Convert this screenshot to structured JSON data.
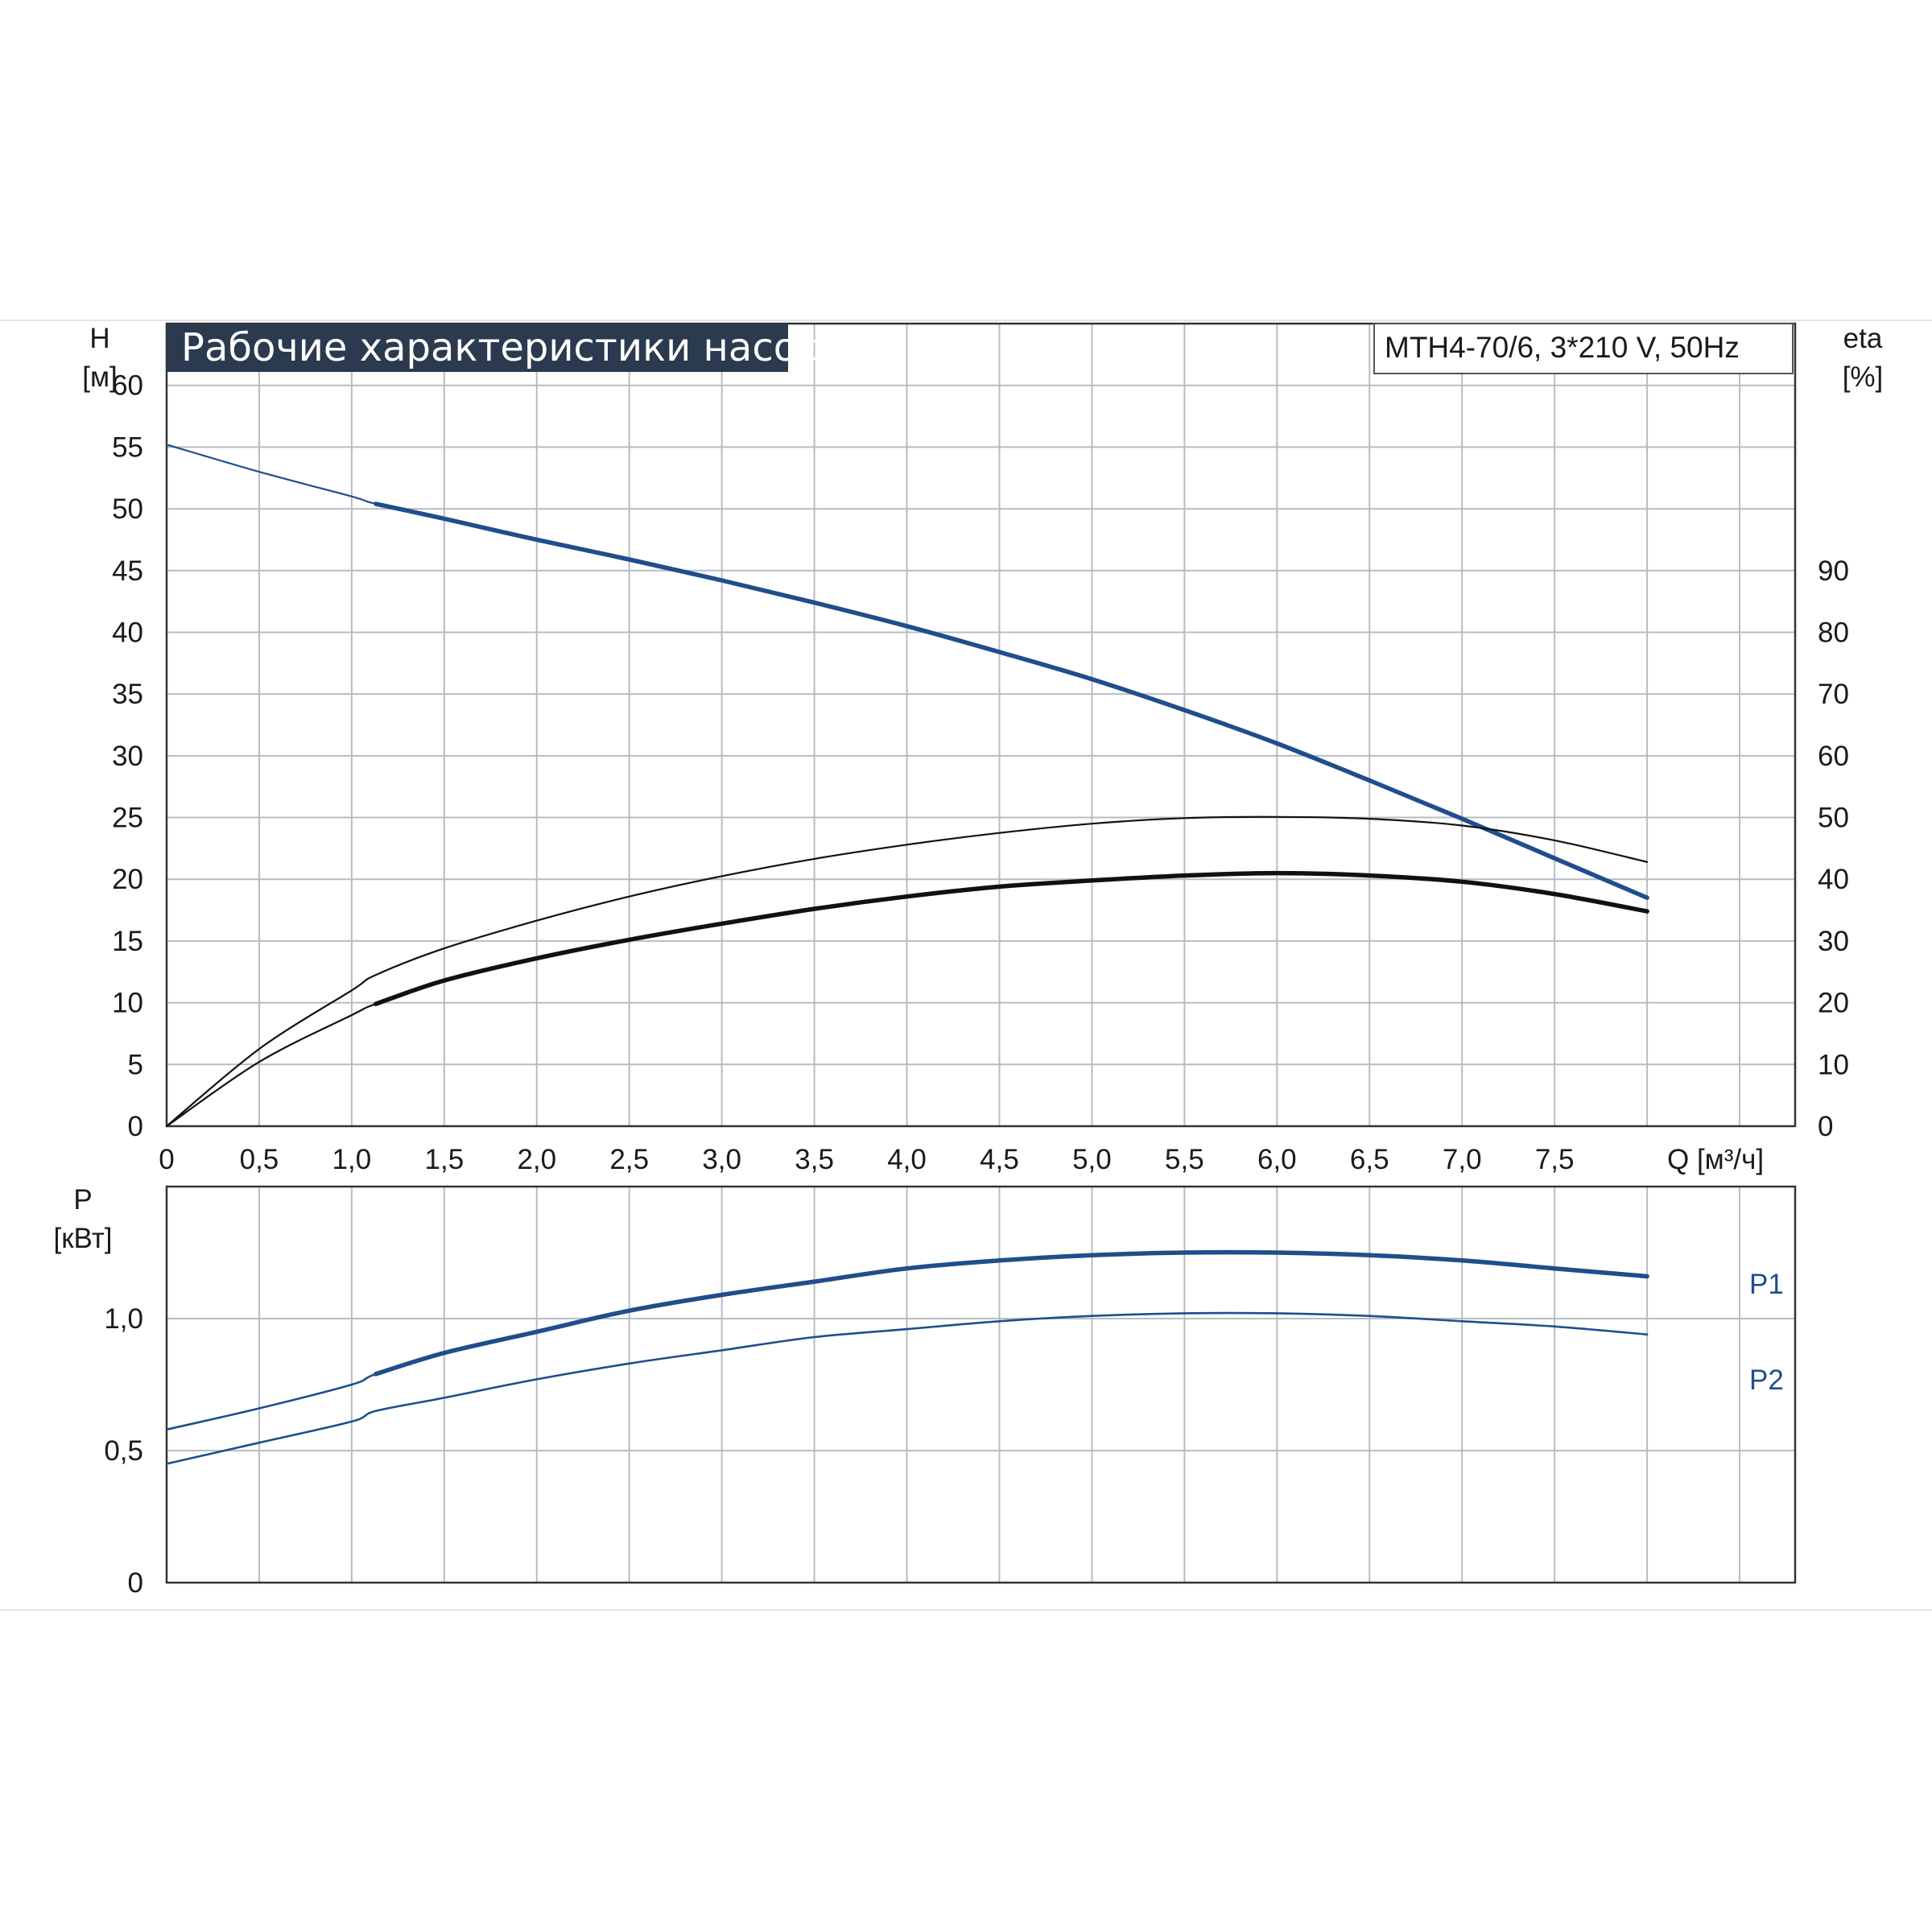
{
  "chart_data": [
    {
      "type": "line",
      "title": "Рабочие характеристики насоса",
      "subtitle": "MTH4-70/6, 3*210 V, 50Hz",
      "ylabel": [
        "H",
        "[м]"
      ],
      "y2label": [
        "eta",
        "[%]"
      ],
      "xlabel": "Q [м³/ч]",
      "xlim": [
        0,
        8.8
      ],
      "ylim": [
        0,
        65
      ],
      "y2lim": [
        0,
        130
      ],
      "x_ticks": [
        "0",
        "0,5",
        "1,0",
        "1,5",
        "2,0",
        "2,5",
        "3,0",
        "3,5",
        "4,0",
        "4,5",
        "5,0",
        "5,5",
        "6,0",
        "6,5",
        "7,0",
        "7,5"
      ],
      "x_tick_values": [
        0,
        0.5,
        1.0,
        1.5,
        2.0,
        2.5,
        3.0,
        3.5,
        4.0,
        4.5,
        5.0,
        5.5,
        6.0,
        6.5,
        7.0,
        7.5
      ],
      "y_ticks": [
        "0",
        "5",
        "10",
        "15",
        "20",
        "25",
        "30",
        "35",
        "40",
        "45",
        "50",
        "55",
        "60"
      ],
      "y_tick_values": [
        0,
        5,
        10,
        15,
        20,
        25,
        30,
        35,
        40,
        45,
        50,
        55,
        60
      ],
      "y2_ticks": [
        "0",
        "10",
        "20",
        "30",
        "40",
        "50",
        "60",
        "70",
        "80",
        "90"
      ],
      "y2_tick_values": [
        0,
        10,
        20,
        30,
        40,
        50,
        60,
        70,
        80,
        90
      ],
      "grid": true,
      "series": [
        {
          "axis": "left",
          "color": "#1f4e8c",
          "x": [
            0,
            0.5,
            1.0,
            1.13,
            1.5,
            2.0,
            2.5,
            3.0,
            3.5,
            4.0,
            4.5,
            5.0,
            5.5,
            6.0,
            6.5,
            7.0,
            7.5,
            8.0
          ],
          "values": [
            55.2,
            53.0,
            51.0,
            50.4,
            49.2,
            47.5,
            45.9,
            44.2,
            42.4,
            40.5,
            38.4,
            36.2,
            33.7,
            31.0,
            28.0,
            24.9,
            21.7,
            18.5
          ],
          "bold_from": 1.13
        },
        {
          "axis": "right",
          "color": "#111111",
          "x": [
            0,
            0.5,
            1.0,
            1.13,
            1.5,
            2.0,
            2.5,
            3.0,
            3.5,
            4.0,
            4.5,
            5.0,
            5.5,
            6.0,
            6.5,
            7.0,
            7.5,
            8.0
          ],
          "values": [
            0,
            12.5,
            22.0,
            24.5,
            28.8,
            33.3,
            37.2,
            40.5,
            43.3,
            45.6,
            47.5,
            49.0,
            49.9,
            50.1,
            49.8,
            48.7,
            46.3,
            42.8
          ],
          "bold_from": 99
        },
        {
          "axis": "left",
          "color": "#111111",
          "x": [
            0,
            0.5,
            1.0,
            1.13,
            1.5,
            2.0,
            2.5,
            3.0,
            3.5,
            4.0,
            4.5,
            5.0,
            5.5,
            6.0,
            6.5,
            7.0,
            7.5,
            8.0
          ],
          "values": [
            0,
            5.2,
            9.0,
            9.9,
            11.8,
            13.6,
            15.1,
            16.4,
            17.6,
            18.6,
            19.4,
            19.9,
            20.3,
            20.5,
            20.3,
            19.8,
            18.8,
            17.4
          ],
          "bold_from": 1.13
        }
      ]
    },
    {
      "type": "line",
      "ylabel": [
        "P",
        "[кВт]"
      ],
      "xlim": [
        0,
        8.8
      ],
      "ylim": [
        0,
        1.5
      ],
      "y_ticks": [
        "0",
        "0,5",
        "1,0"
      ],
      "y_tick_values": [
        0,
        0.5,
        1.0
      ],
      "grid": true,
      "series": [
        {
          "name": "P1",
          "color": "#1f4e8c",
          "x": [
            0,
            0.5,
            1.0,
            1.13,
            1.5,
            2.0,
            2.5,
            3.0,
            3.5,
            4.0,
            4.5,
            5.0,
            5.5,
            6.0,
            6.5,
            7.0,
            7.5,
            8.0
          ],
          "values": [
            0.58,
            0.66,
            0.75,
            0.79,
            0.87,
            0.95,
            1.03,
            1.09,
            1.14,
            1.19,
            1.22,
            1.24,
            1.25,
            1.25,
            1.24,
            1.22,
            1.19,
            1.16
          ],
          "bold_from": 1.13
        },
        {
          "name": "P2",
          "color": "#1f4e8c",
          "x": [
            0,
            0.5,
            1.0,
            1.13,
            1.5,
            2.0,
            2.5,
            3.0,
            3.5,
            4.0,
            4.5,
            5.0,
            5.5,
            6.0,
            6.5,
            7.0,
            7.5,
            8.0
          ],
          "values": [
            0.45,
            0.53,
            0.61,
            0.65,
            0.7,
            0.77,
            0.83,
            0.88,
            0.93,
            0.96,
            0.99,
            1.01,
            1.02,
            1.02,
            1.01,
            0.99,
            0.97,
            0.94
          ],
          "bold_from": 99
        }
      ]
    }
  ]
}
